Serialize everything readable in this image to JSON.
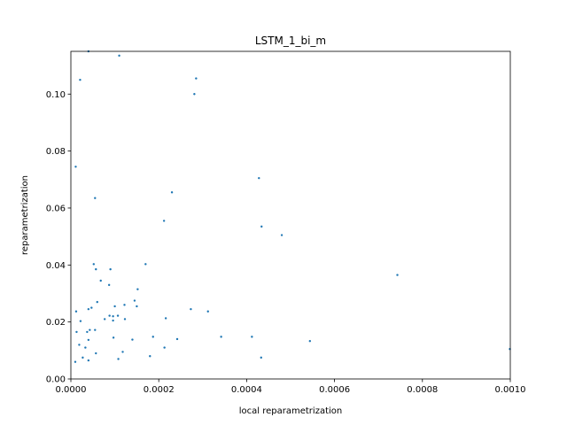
{
  "chart_data": {
    "type": "scatter",
    "title": "LSTM_1_bi_m",
    "xlabel": "local reparametrization",
    "ylabel": "reparametrization",
    "xlim": [
      0,
      0.001
    ],
    "ylim": [
      0,
      0.115
    ],
    "xticks": [
      0,
      0.0002,
      0.0004,
      0.0006,
      0.0008,
      0.001
    ],
    "xtick_labels": [
      "0.0000",
      "0.0002",
      "0.0004",
      "0.0006",
      "0.0008",
      "0.0010"
    ],
    "yticks": [
      0,
      0.02,
      0.04,
      0.06,
      0.08,
      0.1
    ],
    "ytick_labels": [
      "0.00",
      "0.02",
      "0.04",
      "0.06",
      "0.08",
      "0.10"
    ],
    "grid": false,
    "marker_color": "#1f77b4",
    "series": [
      {
        "x": [
          4e-05,
          0.00011,
          0.000285,
          2.1e-05,
          0.000281,
          1.1e-05,
          0.000428,
          0.00023,
          5.5e-05,
          0.000212,
          0.000434,
          0.00048,
          0.000743,
          0.00017,
          5.2e-05,
          5.7e-05,
          9e-05,
          6.8e-05,
          0.000152,
          8.7e-05,
          0.000145,
          6e-05,
          0.000122,
          0.0001,
          0.00015,
          4e-05,
          4.7e-05,
          1.2e-05,
          0.000273,
          0.000312,
          9.6e-05,
          0.000107,
          8.8e-05,
          0.000216,
          0.000123,
          9.6e-05,
          2.2e-05,
          4.3e-05,
          5.5e-05,
          3.7e-05,
          1.3e-05,
          7.7e-05,
          0.000187,
          0.00014,
          0.000242,
          0.000342,
          0.000412,
          9.7e-05,
          0.000544,
          1.9e-05,
          4e-05,
          3.3e-05,
          0.000213,
          0.000118,
          5.7e-05,
          0.00018,
          0.000433,
          2.7e-05,
          0.000108,
          4e-05,
          1e-05,
          0.000999
        ]
      }
    ],
    "y": [
      0.115,
      0.1135,
      0.1055,
      0.105,
      0.1,
      0.0745,
      0.0705,
      0.0655,
      0.0635,
      0.0555,
      0.0535,
      0.0505,
      0.0365,
      0.0403,
      0.0403,
      0.0385,
      0.0385,
      0.0345,
      0.0315,
      0.033,
      0.0275,
      0.027,
      0.026,
      0.0255,
      0.0255,
      0.0245,
      0.025,
      0.0237,
      0.0245,
      0.0237,
      0.022,
      0.0222,
      0.0222,
      0.0213,
      0.021,
      0.0205,
      0.0203,
      0.0172,
      0.0172,
      0.0165,
      0.0165,
      0.021,
      0.0148,
      0.0138,
      0.014,
      0.0148,
      0.0148,
      0.0145,
      0.0133,
      0.012,
      0.0137,
      0.011,
      0.011,
      0.0095,
      0.009,
      0.008,
      0.0075,
      0.0075,
      0.007,
      0.0065,
      0.006,
      0.0105
    ]
  }
}
